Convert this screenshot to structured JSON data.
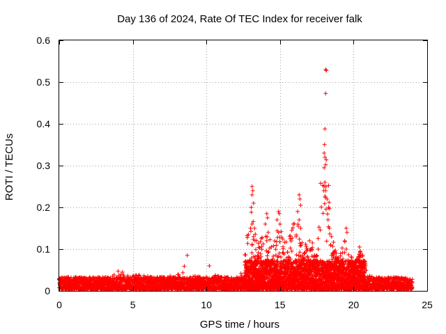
{
  "chart_data": {
    "type": "scatter",
    "title": "Day 136 of 2024, Rate Of TEC Index for receiver falk",
    "xlabel": "GPS time / hours",
    "ylabel": "ROTI / TECUs",
    "xlim": [
      0,
      25
    ],
    "ylim": [
      0,
      0.6
    ],
    "xticks": [
      0,
      5,
      10,
      15,
      20,
      25
    ],
    "yticks": [
      0,
      0.1,
      0.2,
      0.3,
      0.4,
      0.5,
      0.6
    ],
    "xtick_labels": [
      "0",
      "5",
      "10",
      "15",
      "20",
      "25"
    ],
    "ytick_labels": [
      "0",
      "0.1",
      "0.2",
      "0.3",
      "0.4",
      "0.5",
      "0.6"
    ],
    "grid": true,
    "marker": "+",
    "marker_color": "#ff0000",
    "series": [
      {
        "name": "ROTI",
        "envelope_hours": [
          0,
          1,
          2,
          3,
          4,
          5,
          6,
          7,
          8,
          8.7,
          9,
          10,
          11,
          12,
          12.5,
          13,
          13.5,
          14,
          14.5,
          15,
          15.5,
          16,
          16.5,
          17,
          17.5,
          18,
          18.5,
          19,
          19.5,
          20,
          20.5,
          21,
          22,
          23,
          24
        ],
        "envelope_values": [
          0.03,
          0.03,
          0.03,
          0.035,
          0.045,
          0.04,
          0.04,
          0.035,
          0.045,
          0.085,
          0.04,
          0.06,
          0.035,
          0.035,
          0.05,
          0.25,
          0.12,
          0.185,
          0.12,
          0.19,
          0.12,
          0.23,
          0.13,
          0.12,
          0.1,
          0.53,
          0.15,
          0.08,
          0.15,
          0.06,
          0.105,
          0.04,
          0.03,
          0.03,
          0.025
        ],
        "outliers": [
          [
            18.1,
            0.53
          ],
          [
            18.15,
            0.528
          ],
          [
            18.1,
            0.473
          ],
          [
            18.05,
            0.388
          ],
          [
            18.0,
            0.33
          ],
          [
            18.05,
            0.32
          ],
          [
            18.1,
            0.302
          ],
          [
            18.0,
            0.295
          ],
          [
            18.05,
            0.26
          ],
          [
            18.0,
            0.25
          ],
          [
            18.1,
            0.24
          ],
          [
            18.2,
            0.22
          ],
          [
            18.3,
            0.2
          ],
          [
            18.35,
            0.15
          ],
          [
            13.1,
            0.25
          ],
          [
            13.15,
            0.24
          ],
          [
            13.1,
            0.23
          ],
          [
            13.2,
            0.21
          ],
          [
            13.05,
            0.2
          ],
          [
            13.1,
            0.16
          ],
          [
            13.0,
            0.15
          ],
          [
            13.2,
            0.13
          ],
          [
            13.1,
            0.11
          ],
          [
            14.1,
            0.185
          ],
          [
            14.15,
            0.175
          ],
          [
            14.0,
            0.16
          ],
          [
            14.2,
            0.14
          ],
          [
            14.1,
            0.12
          ],
          [
            14.9,
            0.19
          ],
          [
            14.95,
            0.185
          ],
          [
            14.8,
            0.17
          ],
          [
            15.0,
            0.16
          ],
          [
            14.9,
            0.14
          ],
          [
            16.3,
            0.23
          ],
          [
            16.35,
            0.22
          ],
          [
            16.4,
            0.205
          ],
          [
            16.2,
            0.19
          ],
          [
            16.3,
            0.17
          ],
          [
            16.4,
            0.15
          ],
          [
            15.9,
            0.16
          ],
          [
            15.8,
            0.145
          ],
          [
            16.1,
            0.13
          ],
          [
            18.5,
            0.13
          ],
          [
            18.45,
            0.11
          ],
          [
            19.5,
            0.15
          ],
          [
            19.55,
            0.14
          ],
          [
            19.4,
            0.12
          ],
          [
            19.5,
            0.1
          ],
          [
            20.4,
            0.105
          ],
          [
            20.45,
            0.095
          ],
          [
            8.7,
            0.085
          ],
          [
            10.2,
            0.06
          ],
          [
            4.3,
            0.045
          ],
          [
            4.0,
            0.047
          ],
          [
            17.0,
            0.12
          ],
          [
            17.2,
            0.115
          ],
          [
            17.6,
            0.1
          ]
        ]
      }
    ]
  }
}
